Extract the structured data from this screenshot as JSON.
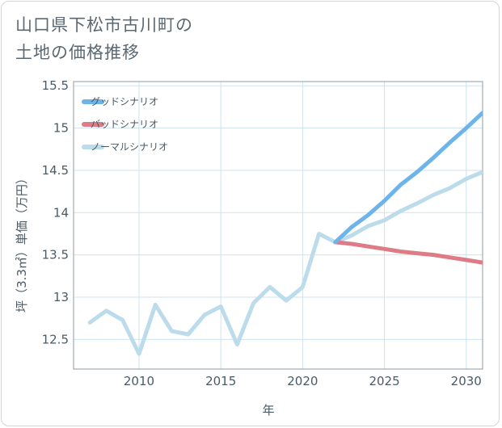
{
  "chart_data": {
    "type": "line",
    "title": "山口県下松市古川町の土地の価格推移",
    "title_lines": [
      "山口県下松市古川町の",
      "土地の価格推移"
    ],
    "xlabel": "年",
    "ylabel": "坪（3.3㎡）単価（万円）",
    "xlim": [
      2006,
      2031
    ],
    "ylim": [
      12.15,
      15.55
    ],
    "x_ticks": [
      2010,
      2015,
      2020,
      2025,
      2030
    ],
    "y_ticks": [
      12.5,
      13,
      13.5,
      14,
      14.5,
      15,
      15.5
    ],
    "grid": true,
    "legend_position": "top-left",
    "series": [
      {
        "name": "グッドシナリオ",
        "color": "#6cb4ea",
        "x": [
          2022,
          2023,
          2024,
          2025,
          2026,
          2027,
          2028,
          2029,
          2030,
          2031
        ],
        "values": [
          13.65,
          13.83,
          13.97,
          14.14,
          14.33,
          14.48,
          14.65,
          14.83,
          15.0,
          15.18
        ]
      },
      {
        "name": "バッドシナリオ",
        "color": "#dd7c86",
        "x": [
          2022,
          2023,
          2024,
          2025,
          2026,
          2027,
          2028,
          2029,
          2030,
          2031
        ],
        "values": [
          13.65,
          13.63,
          13.6,
          13.57,
          13.54,
          13.52,
          13.5,
          13.47,
          13.44,
          13.41
        ]
      },
      {
        "name": "ノーマルシナリオ",
        "color": "#bcdcec",
        "x": [
          2007,
          2008,
          2009,
          2010,
          2011,
          2012,
          2013,
          2014,
          2015,
          2016,
          2017,
          2018,
          2019,
          2020,
          2021,
          2022,
          2023,
          2024,
          2025,
          2026,
          2027,
          2028,
          2029,
          2030,
          2031
        ],
        "values": [
          12.7,
          12.84,
          12.73,
          12.33,
          12.91,
          12.6,
          12.56,
          12.79,
          12.89,
          12.44,
          12.93,
          13.12,
          12.96,
          13.12,
          13.75,
          13.65,
          13.73,
          13.84,
          13.91,
          14.02,
          14.11,
          14.21,
          14.29,
          14.4,
          14.48
        ]
      }
    ]
  }
}
